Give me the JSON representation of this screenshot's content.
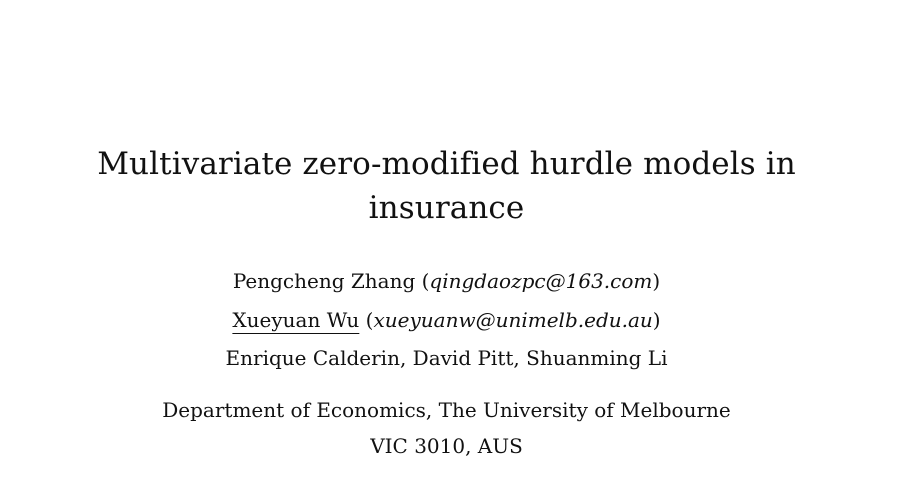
{
  "title": {
    "line1": "Multivariate zero-modified hurdle models in",
    "line2": "insurance"
  },
  "authors": {
    "author1_name": "Pengcheng Zhang",
    "author1_email": "qingdaozpc@163.com",
    "author2_name": "Xueyuan Wu",
    "author2_email": "xueyuanw@unimelb.edu.au",
    "others": "Enrique Calderin, David Pitt, Shuanming Li"
  },
  "affiliation": {
    "line1": "Department of Economics, The University of Melbourne",
    "line2": "VIC 3010, AUS"
  }
}
